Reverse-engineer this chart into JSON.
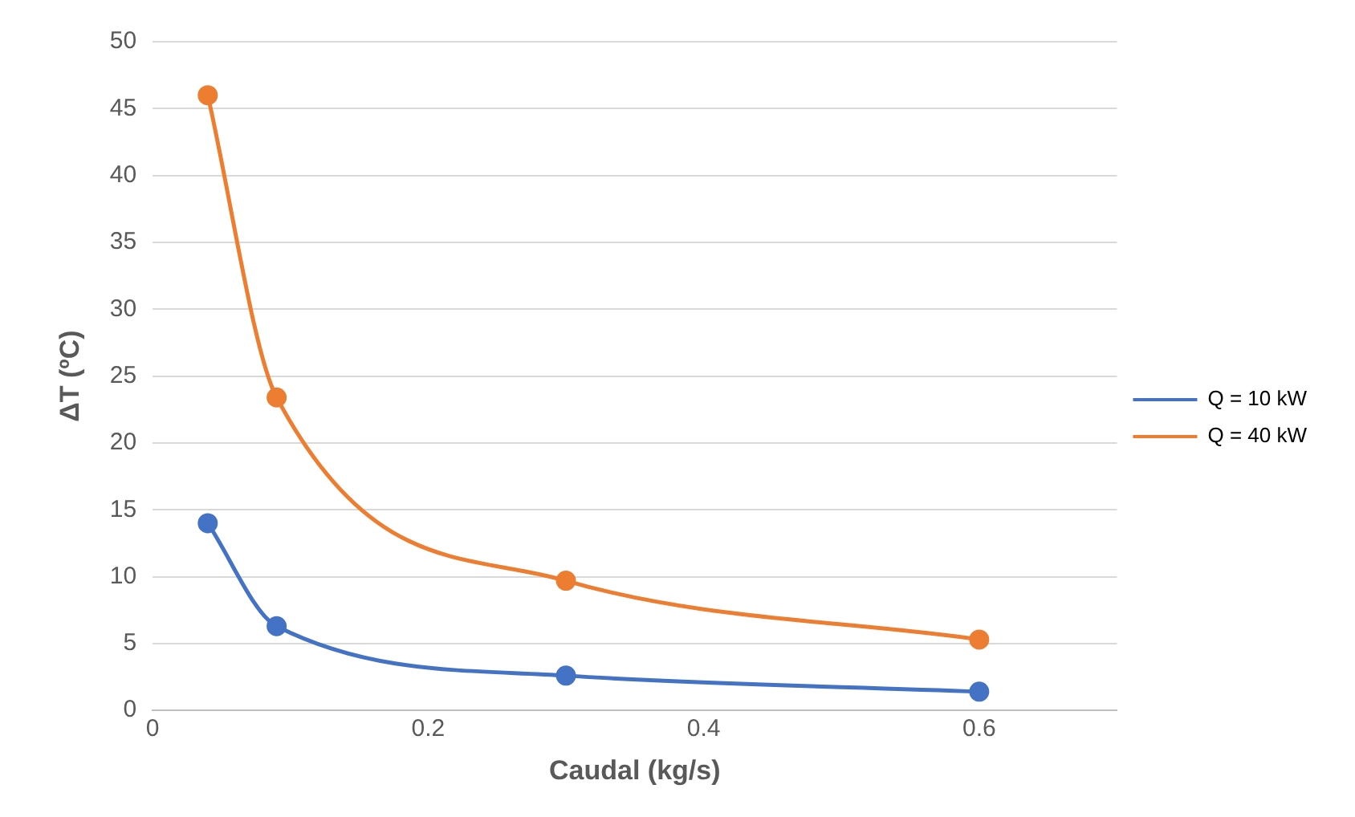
{
  "chart_data": {
    "type": "line",
    "xlabel": "Caudal (kg/s)",
    "ylabel": "ΔT (ºC)",
    "x": [
      0.04,
      0.09,
      0.3,
      0.6
    ],
    "series": [
      {
        "name": "Q = 10 kW",
        "color": "#4472c4",
        "values": [
          14,
          6.3,
          2.6,
          1.4
        ]
      },
      {
        "name": "Q = 40 kW",
        "color": "#ed7d31",
        "values": [
          46,
          23.4,
          9.7,
          5.3
        ]
      }
    ],
    "xlim": [
      0,
      0.7
    ],
    "xticks": [
      0,
      0.2,
      0.4,
      0.6
    ],
    "ylim": [
      0,
      50
    ],
    "yticks": [
      0,
      5,
      10,
      15,
      20,
      25,
      30,
      35,
      40,
      45,
      50
    ],
    "grid": "y",
    "legend": "right",
    "marker": "circle",
    "line_style": "solid"
  }
}
